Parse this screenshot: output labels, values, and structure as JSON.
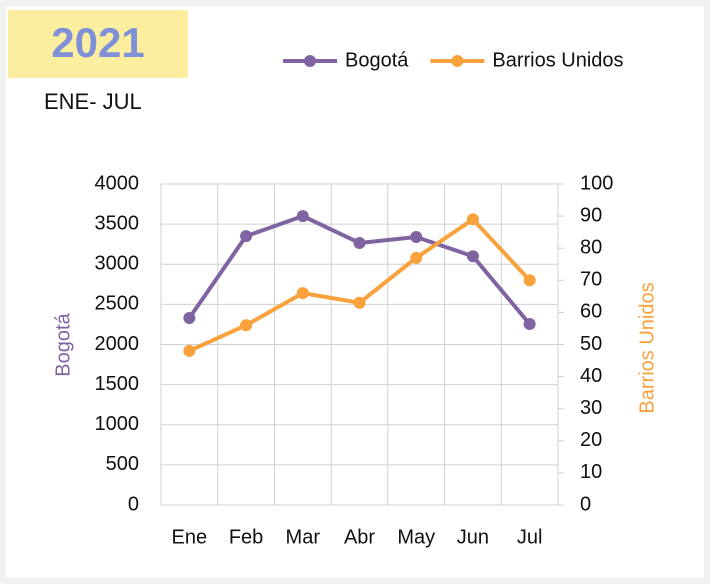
{
  "chart_data": {
    "type": "line",
    "title": "2021",
    "subtitle": "ENE- JUL",
    "categories": [
      "Ene",
      "Feb",
      "Mar",
      "Abr",
      "May",
      "Jun",
      "Jul"
    ],
    "series": [
      {
        "name": "Bogotá",
        "color": "#8064a2",
        "values": [
          2330,
          3350,
          3600,
          3265,
          3340,
          3100,
          2255
        ]
      },
      {
        "name": "Barrios Unidos",
        "color": "#f9a13a",
        "axis": "y2",
        "values": [
          48,
          56,
          66,
          63,
          77,
          89,
          70
        ]
      }
    ],
    "ylabel": "Bogotá",
    "y2label": "Barrios Unidos",
    "ylim": [
      0,
      4000
    ],
    "yticks": [
      0,
      500,
      1000,
      1500,
      2000,
      2500,
      3000,
      3500,
      4000
    ],
    "y2lim": [
      0,
      100
    ],
    "y2ticks": [
      0,
      10,
      20,
      30,
      40,
      50,
      60,
      70,
      80,
      90,
      100
    ],
    "grid": true,
    "legend": "top"
  }
}
